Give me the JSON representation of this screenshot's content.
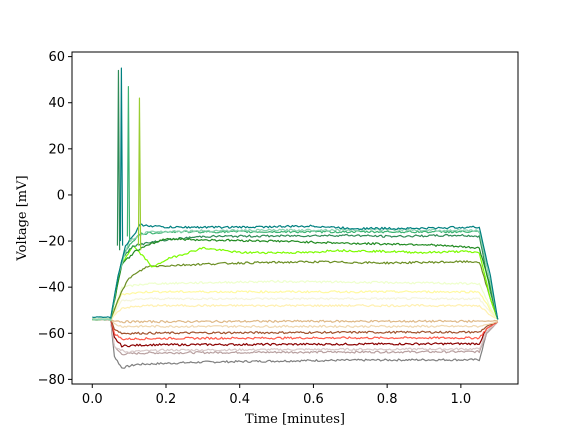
{
  "chart_data": {
    "type": "line",
    "title": "",
    "xlabel": "Time [minutes]",
    "ylabel": "Voltage [mV]",
    "xlim": [
      -0.055,
      1.155
    ],
    "ylim": [
      -82,
      62
    ],
    "xticks": [
      0.0,
      0.2,
      0.4,
      0.6,
      0.8,
      1.0
    ],
    "xtick_labels": [
      "0.0",
      "0.2",
      "0.4",
      "0.6",
      "0.8",
      "1.0"
    ],
    "yticks": [
      -80,
      -60,
      -40,
      -20,
      0,
      20,
      40,
      60
    ],
    "ytick_labels": [
      "−80",
      "−60",
      "−40",
      "−20",
      "0",
      "20",
      "40",
      "60"
    ],
    "grid": false,
    "series": [
      {
        "color": "#808080",
        "values": [
          [
            0,
            -54
          ],
          [
            0.05,
            -54
          ],
          [
            0.06,
            -70
          ],
          [
            0.08,
            -75
          ],
          [
            0.12,
            -73.5
          ],
          [
            0.3,
            -72.5
          ],
          [
            0.6,
            -71.8
          ],
          [
            0.9,
            -71.5
          ],
          [
            1.05,
            -71.5
          ],
          [
            1.07,
            -60
          ],
          [
            1.1,
            -55
          ]
        ]
      },
      {
        "color": "#b8a0a0",
        "values": [
          [
            0,
            -54
          ],
          [
            0.05,
            -54
          ],
          [
            0.06,
            -66
          ],
          [
            0.08,
            -69
          ],
          [
            0.15,
            -68.5
          ],
          [
            0.5,
            -68.2
          ],
          [
            1.05,
            -68
          ],
          [
            1.07,
            -60
          ],
          [
            1.1,
            -55
          ]
        ]
      },
      {
        "color": "#d8c8c8",
        "values": [
          [
            0,
            -54
          ],
          [
            0.05,
            -54
          ],
          [
            0.06,
            -66
          ],
          [
            0.09,
            -68
          ],
          [
            0.2,
            -67.3
          ],
          [
            0.6,
            -67
          ],
          [
            1.05,
            -66.8
          ],
          [
            1.07,
            -59
          ],
          [
            1.1,
            -55
          ]
        ]
      },
      {
        "color": "#8b0000",
        "values": [
          [
            0,
            -54
          ],
          [
            0.05,
            -54
          ],
          [
            0.06,
            -62
          ],
          [
            0.08,
            -65.5
          ],
          [
            0.15,
            -65
          ],
          [
            0.5,
            -64.8
          ],
          [
            1.05,
            -64.5
          ],
          [
            1.07,
            -58
          ],
          [
            1.1,
            -55
          ]
        ]
      },
      {
        "color": "#ff5a4a",
        "values": [
          [
            0,
            -54
          ],
          [
            0.05,
            -54
          ],
          [
            0.06,
            -60
          ],
          [
            0.08,
            -62.5
          ],
          [
            0.2,
            -62.2
          ],
          [
            0.6,
            -62
          ],
          [
            1.05,
            -62
          ],
          [
            1.07,
            -58
          ],
          [
            1.1,
            -55
          ]
        ]
      },
      {
        "color": "#a0522d",
        "values": [
          [
            0,
            -54
          ],
          [
            0.05,
            -54
          ],
          [
            0.06,
            -58
          ],
          [
            0.08,
            -60
          ],
          [
            0.3,
            -59.8
          ],
          [
            0.7,
            -59.6
          ],
          [
            1.05,
            -59.5
          ],
          [
            1.07,
            -57
          ],
          [
            1.1,
            -55
          ]
        ]
      },
      {
        "color": "#f0d8b0",
        "values": [
          [
            0,
            -54
          ],
          [
            0.05,
            -54
          ],
          [
            0.06,
            -56
          ],
          [
            0.08,
            -57
          ],
          [
            0.5,
            -57
          ],
          [
            1.05,
            -57
          ],
          [
            1.1,
            -55
          ]
        ]
      },
      {
        "color": "#deb887",
        "values": [
          [
            0,
            -54
          ],
          [
            0.05,
            -54
          ],
          [
            0.08,
            -55
          ],
          [
            0.5,
            -54.8
          ],
          [
            1.05,
            -54.8
          ],
          [
            1.1,
            -54.5
          ]
        ]
      },
      {
        "color": "#fff0b0",
        "values": [
          [
            0,
            -54
          ],
          [
            0.05,
            -54
          ],
          [
            0.08,
            -49
          ],
          [
            0.15,
            -48
          ],
          [
            0.6,
            -48
          ],
          [
            1.05,
            -48
          ],
          [
            1.08,
            -52
          ],
          [
            1.1,
            -54
          ]
        ]
      },
      {
        "color": "#f5f5dc",
        "values": [
          [
            0,
            -54
          ],
          [
            0.05,
            -54
          ],
          [
            0.08,
            -46
          ],
          [
            0.15,
            -45
          ],
          [
            0.6,
            -45
          ],
          [
            1.05,
            -45
          ],
          [
            1.08,
            -51
          ],
          [
            1.1,
            -54
          ]
        ]
      },
      {
        "color": "#fff9a0",
        "values": [
          [
            0,
            -54
          ],
          [
            0.05,
            -54
          ],
          [
            0.08,
            -43
          ],
          [
            0.15,
            -42
          ],
          [
            0.6,
            -42
          ],
          [
            1.05,
            -42
          ],
          [
            1.08,
            -50
          ],
          [
            1.1,
            -54
          ]
        ]
      },
      {
        "color": "#eeffcc",
        "values": [
          [
            0,
            -54
          ],
          [
            0.05,
            -54
          ],
          [
            0.08,
            -40
          ],
          [
            0.15,
            -38.5
          ],
          [
            0.5,
            -37.5
          ],
          [
            0.8,
            -38
          ],
          [
            1.05,
            -38.5
          ],
          [
            1.08,
            -49
          ],
          [
            1.1,
            -54
          ]
        ]
      },
      {
        "color": "#6b8e23",
        "values": [
          [
            0,
            -54
          ],
          [
            0.05,
            -54
          ],
          [
            0.07,
            -45
          ],
          [
            0.1,
            -36
          ],
          [
            0.15,
            -31
          ],
          [
            0.3,
            -30
          ],
          [
            0.4,
            -29.5
          ],
          [
            0.6,
            -29
          ],
          [
            0.8,
            -29.5
          ],
          [
            1.0,
            -29
          ],
          [
            1.05,
            -29
          ],
          [
            1.08,
            -45
          ],
          [
            1.1,
            -54
          ]
        ]
      },
      {
        "color": "#7cfc00",
        "values": [
          [
            0,
            -54
          ],
          [
            0.05,
            -54
          ],
          [
            0.08,
            -30
          ],
          [
            0.11,
            -22
          ],
          [
            0.14,
            -27
          ],
          [
            0.165,
            -31.5
          ],
          [
            0.2,
            -28
          ],
          [
            0.3,
            -23
          ],
          [
            0.35,
            -24
          ],
          [
            0.4,
            -25
          ],
          [
            0.6,
            -25
          ],
          [
            0.65,
            -24
          ],
          [
            0.8,
            -24.5
          ],
          [
            0.9,
            -25
          ],
          [
            1.0,
            -24.5
          ],
          [
            1.05,
            -25
          ],
          [
            1.08,
            -45
          ],
          [
            1.1,
            -54
          ]
        ]
      },
      {
        "color": "#2e8b57",
        "values": [
          [
            0,
            -54
          ],
          [
            0.05,
            -54
          ],
          [
            0.08,
            -28
          ],
          [
            0.11,
            -22
          ],
          [
            0.2,
            -19.5
          ],
          [
            0.3,
            -18
          ],
          [
            0.5,
            -17.8
          ],
          [
            0.7,
            -17.5
          ],
          [
            0.8,
            -18
          ],
          [
            1.0,
            -17.5
          ],
          [
            1.05,
            -18
          ],
          [
            1.08,
            -42
          ],
          [
            1.1,
            -54
          ]
        ]
      },
      {
        "color": "#228b22",
        "values": [
          [
            0,
            -54
          ],
          [
            0.05,
            -54
          ],
          [
            0.08,
            -30
          ],
          [
            0.12,
            -24
          ],
          [
            0.18,
            -20
          ],
          [
            0.2,
            -19
          ],
          [
            0.3,
            -19.5
          ],
          [
            0.5,
            -20
          ],
          [
            0.7,
            -21
          ],
          [
            0.9,
            -21.5
          ],
          [
            1.05,
            -23
          ],
          [
            1.08,
            -40
          ],
          [
            1.1,
            -54
          ]
        ]
      },
      {
        "color": "#3cb371",
        "values": [
          [
            0,
            -54
          ],
          [
            0.05,
            -54
          ],
          [
            0.07,
            -35
          ],
          [
            0.09,
            -24
          ],
          [
            0.11,
            -20
          ],
          [
            0.13,
            -17
          ],
          [
            0.2,
            -16
          ],
          [
            0.4,
            -16
          ],
          [
            0.7,
            -16
          ],
          [
            1.0,
            -16
          ],
          [
            1.05,
            -16
          ],
          [
            1.08,
            -38
          ],
          [
            1.1,
            -54
          ]
        ]
      },
      {
        "color": "#8cd3b0",
        "values": [
          [
            0,
            -54
          ],
          [
            0.05,
            -54
          ],
          [
            0.07,
            -35
          ],
          [
            0.1,
            -20
          ],
          [
            0.15,
            -16
          ],
          [
            0.3,
            -15.5
          ],
          [
            0.5,
            -15.3
          ],
          [
            0.8,
            -15
          ],
          [
            1.0,
            -15.5
          ],
          [
            1.05,
            -15.5
          ],
          [
            1.08,
            -38
          ],
          [
            1.1,
            -54
          ]
        ]
      },
      {
        "color": "#008080",
        "values": [
          [
            0,
            -53
          ],
          [
            0.05,
            -53
          ],
          [
            0.07,
            -35
          ],
          [
            0.09,
            -22
          ],
          [
            0.11,
            -18
          ],
          [
            0.13,
            -13
          ],
          [
            0.2,
            -14
          ],
          [
            0.4,
            -14
          ],
          [
            0.6,
            -13.5
          ],
          [
            0.7,
            -14.5
          ],
          [
            0.9,
            -14.5
          ],
          [
            1.0,
            -14
          ],
          [
            1.05,
            -14
          ],
          [
            1.08,
            -35
          ],
          [
            1.1,
            -54
          ]
        ]
      }
    ],
    "spikes": [
      {
        "color": "#2e8b57",
        "x": 0.071,
        "base": -22,
        "peak": 54
      },
      {
        "color": "#008080",
        "x": 0.079,
        "base": -20,
        "peak": 55
      },
      {
        "color": "#3cb371",
        "x": 0.098,
        "base": -18,
        "peak": 47
      },
      {
        "color": "#9acd32",
        "x": 0.128,
        "base": -22,
        "peak": 42
      }
    ]
  }
}
